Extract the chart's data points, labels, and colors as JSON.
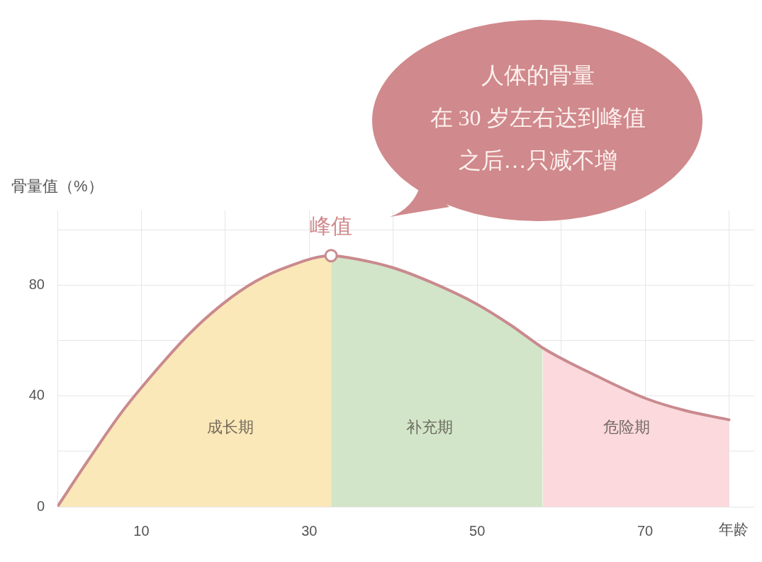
{
  "chart_data": {
    "type": "area",
    "ylabel": "骨量值（%）",
    "xlabel": "年龄",
    "annotations": [
      {
        "text": "峰值",
        "x": 32.6,
        "y": 90.7
      },
      "人体的骨量",
      "在 30 岁左右达到峰值",
      "之后…只减不增"
    ],
    "series": [
      {
        "name": "成长期",
        "color": "#fbe8b8",
        "x": [
          0,
          3.5,
          7.5,
          10,
          15.5,
          19.5,
          23.6,
          27.6,
          32.6
        ],
        "values": [
          0,
          16,
          33.5,
          43,
          61.8,
          72.8,
          81.4,
          86.9,
          90.7
        ]
      },
      {
        "name": "补充期",
        "color": "#d2e5c8",
        "x": [
          32.6,
          35,
          39.9,
          44.5,
          49.9,
          54,
          57.8
        ],
        "values": [
          90.7,
          89.8,
          86.4,
          81.1,
          73.3,
          65.6,
          57.4
        ]
      },
      {
        "name": "危险期",
        "color": "#fbd9dc",
        "x": [
          57.8,
          60,
          63.5,
          70.1,
          74.7,
          80
        ],
        "values": [
          57.4,
          53.6,
          48.3,
          39.1,
          34.8,
          31.4
        ]
      },
      {
        "type": "line",
        "color": "#c98a8e",
        "x": [
          0,
          3.5,
          7.5,
          10,
          15.5,
          19.5,
          23.6,
          27.6,
          32.6,
          35,
          39.9,
          44.5,
          49.9,
          54,
          57.8,
          60,
          63.5,
          70.1,
          74.7,
          80
        ],
        "values": [
          0,
          16,
          33.5,
          43,
          61.8,
          72.8,
          81.4,
          86.9,
          90.7,
          89.8,
          86.4,
          81.1,
          73.3,
          65.6,
          57.4,
          53.6,
          48.3,
          39.1,
          34.8,
          31.4
        ]
      },
      {
        "type": "scatter",
        "color": "#c98a8e",
        "marker": "circle",
        "x": [
          32.6
        ],
        "values": [
          90.7
        ]
      }
    ],
    "xlim": [
      0,
      83
    ],
    "ylim": [
      0,
      107
    ],
    "xticks": [
      {
        "value": 0,
        "label": null
      },
      10,
      {
        "value": 20,
        "label": null
      },
      30,
      {
        "value": 40,
        "label": null
      },
      50,
      {
        "value": 60,
        "label": null
      },
      70,
      {
        "value": 80,
        "label": null
      }
    ],
    "yticks": [
      0,
      {
        "value": 20,
        "label": null
      },
      40,
      {
        "value": 60,
        "label": null
      },
      80,
      {
        "value": 100,
        "label": null
      }
    ],
    "grid": true,
    "marker": "none"
  }
}
